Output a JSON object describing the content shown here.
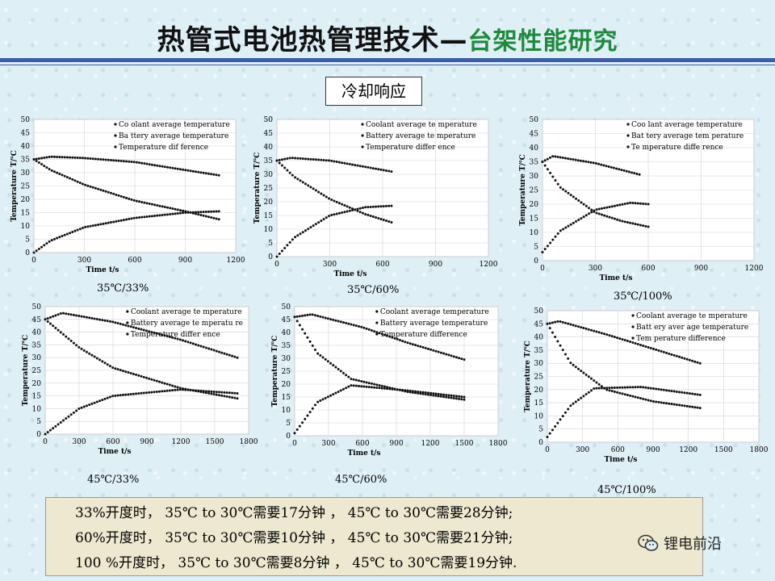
{
  "header": {
    "title_main": "热管式电池热管理技术—",
    "title_sub": "台架性能研究"
  },
  "section_label": "冷却响应",
  "chart_data": [
    {
      "type": "scatter",
      "caption": "35℃/33%",
      "xlabel": "Time t/s",
      "ylabel": "Temperature T/℃",
      "xlim": [
        0,
        1200
      ],
      "ylim": [
        0,
        50
      ],
      "xticks": [
        0,
        300,
        600,
        900,
        1200
      ],
      "yticks": [
        0,
        5,
        10,
        15,
        20,
        25,
        30,
        35,
        40,
        45,
        50
      ],
      "legend": [
        "Co olant average temperature",
        "Ba ttery average temperature",
        "Temperature dif ference"
      ],
      "series": [
        {
          "name": "Coolant",
          "points": [
            [
              0,
              35
            ],
            [
              100,
              36
            ],
            [
              300,
              35.5
            ],
            [
              600,
              34
            ],
            [
              900,
              31
            ],
            [
              1100,
              29
            ]
          ]
        },
        {
          "name": "Battery",
          "points": [
            [
              0,
              35
            ],
            [
              100,
              31
            ],
            [
              300,
              25.5
            ],
            [
              600,
              19.5
            ],
            [
              900,
              15.5
            ],
            [
              1100,
              12.5
            ]
          ]
        },
        {
          "name": "Diff",
          "points": [
            [
              0,
              0
            ],
            [
              100,
              4.5
            ],
            [
              300,
              9.5
            ],
            [
              600,
              13
            ],
            [
              900,
              15
            ],
            [
              1100,
              15.5
            ]
          ]
        }
      ]
    },
    {
      "type": "scatter",
      "caption": "35℃/60%",
      "xlabel": "Time t/s",
      "ylabel": "Temperature T/℃",
      "xlim": [
        0,
        1200
      ],
      "ylim": [
        0,
        50
      ],
      "xticks": [
        0,
        300,
        600,
        900,
        1200
      ],
      "yticks": [
        0,
        5,
        10,
        15,
        20,
        25,
        30,
        35,
        40,
        45,
        50
      ],
      "legend": [
        "Coolant average te mperature",
        "Battery average te mperature",
        "Temperature differ ence"
      ],
      "series": [
        {
          "name": "Coolant",
          "points": [
            [
              0,
              35
            ],
            [
              80,
              36
            ],
            [
              300,
              35
            ],
            [
              650,
              31
            ]
          ]
        },
        {
          "name": "Battery",
          "points": [
            [
              0,
              35
            ],
            [
              100,
              29
            ],
            [
              300,
              21
            ],
            [
              500,
              15.5
            ],
            [
              650,
              12.5
            ]
          ]
        },
        {
          "name": "Diff",
          "points": [
            [
              0,
              0
            ],
            [
              100,
              7
            ],
            [
              300,
              15
            ],
            [
              500,
              18
            ],
            [
              650,
              18.5
            ]
          ]
        }
      ]
    },
    {
      "type": "scatter",
      "caption": "35℃/100%",
      "xlabel": "Time t/s",
      "ylabel": "Temperature T/℃",
      "xlim": [
        0,
        1200
      ],
      "ylim": [
        0,
        50
      ],
      "xticks": [
        0,
        300,
        600,
        900,
        1200
      ],
      "yticks": [
        0,
        5,
        10,
        15,
        20,
        25,
        30,
        35,
        40,
        45,
        50
      ],
      "legend": [
        "Coo lant average temperature",
        "Bat tery average tem perature",
        "Te mperature diffe rence"
      ],
      "series": [
        {
          "name": "Coolant",
          "points": [
            [
              0,
              35
            ],
            [
              60,
              37
            ],
            [
              300,
              34.5
            ],
            [
              550,
              30.5
            ]
          ]
        },
        {
          "name": "Battery",
          "points": [
            [
              0,
              35
            ],
            [
              100,
              26
            ],
            [
              300,
              17
            ],
            [
              450,
              14
            ],
            [
              600,
              12
            ]
          ]
        },
        {
          "name": "Diff",
          "points": [
            [
              0,
              3
            ],
            [
              100,
              10.5
            ],
            [
              300,
              18
            ],
            [
              500,
              20.5
            ],
            [
              600,
              20
            ]
          ]
        }
      ]
    },
    {
      "type": "scatter",
      "caption": "45℃/33%",
      "xlabel": "Time t/s",
      "ylabel": "Temperature T/℃",
      "xlim": [
        0,
        1800
      ],
      "ylim": [
        0,
        50
      ],
      "xticks": [
        0,
        300,
        600,
        900,
        1200,
        1500,
        1800
      ],
      "yticks": [
        0,
        5,
        10,
        15,
        20,
        25,
        30,
        35,
        40,
        45,
        50
      ],
      "legend": [
        "Coolant average te mperature",
        "Battery average te mperatu re",
        "Temperature differ ence"
      ],
      "series": [
        {
          "name": "Coolant",
          "points": [
            [
              0,
              45
            ],
            [
              150,
              47.5
            ],
            [
              600,
              44
            ],
            [
              1200,
              37
            ],
            [
              1700,
              30
            ]
          ]
        },
        {
          "name": "Battery",
          "points": [
            [
              0,
              45
            ],
            [
              300,
              34
            ],
            [
              600,
              26
            ],
            [
              1200,
              18
            ],
            [
              1700,
              14
            ]
          ]
        },
        {
          "name": "Diff",
          "points": [
            [
              0,
              0
            ],
            [
              300,
              10
            ],
            [
              600,
              15
            ],
            [
              1200,
              17.5
            ],
            [
              1700,
              16
            ]
          ]
        }
      ]
    },
    {
      "type": "scatter",
      "caption": "45℃/60%",
      "xlabel": "Time t/s",
      "ylabel": "Temperature T/℃",
      "xlim": [
        0,
        1800
      ],
      "ylim": [
        0,
        50
      ],
      "xticks": [
        0,
        300,
        600,
        900,
        1200,
        1500,
        1800
      ],
      "yticks": [
        0,
        5,
        10,
        15,
        20,
        25,
        30,
        35,
        40,
        45,
        50
      ],
      "legend": [
        "Coolant average temperature",
        "Battery average temperature",
        "Temperature difference"
      ],
      "series": [
        {
          "name": "Coolant",
          "points": [
            [
              0,
              46
            ],
            [
              150,
              47
            ],
            [
              600,
              42
            ],
            [
              1000,
              36
            ],
            [
              1500,
              29.5
            ]
          ]
        },
        {
          "name": "Battery",
          "points": [
            [
              0,
              46
            ],
            [
              200,
              32
            ],
            [
              500,
              22
            ],
            [
              1000,
              17
            ],
            [
              1500,
              14
            ]
          ]
        },
        {
          "name": "Diff",
          "points": [
            [
              0,
              1
            ],
            [
              200,
              13
            ],
            [
              500,
              19.5
            ],
            [
              1000,
              17.5
            ],
            [
              1500,
              15
            ]
          ]
        }
      ]
    },
    {
      "type": "scatter",
      "caption": "45℃/100%",
      "xlabel": "Time t/s",
      "ylabel": "Temperature T/℃",
      "xlim": [
        0,
        1800
      ],
      "ylim": [
        0,
        50
      ],
      "xticks": [
        0,
        300,
        600,
        900,
        1200,
        1500,
        1800
      ],
      "yticks": [
        0,
        5,
        10,
        15,
        20,
        25,
        30,
        35,
        40,
        45,
        50
      ],
      "legend": [
        "Coolant average te mperature",
        "Batt ery aver age temperature",
        "Tem perature difference"
      ],
      "series": [
        {
          "name": "Coolant",
          "points": [
            [
              0,
              45
            ],
            [
              100,
              46
            ],
            [
              500,
              41
            ],
            [
              900,
              35.5
            ],
            [
              1300,
              30
            ]
          ]
        },
        {
          "name": "Battery",
          "points": [
            [
              0,
              45
            ],
            [
              200,
              30
            ],
            [
              500,
              20
            ],
            [
              900,
              15.5
            ],
            [
              1300,
              13
            ]
          ]
        },
        {
          "name": "Diff",
          "points": [
            [
              0,
              2
            ],
            [
              200,
              14
            ],
            [
              400,
              20.5
            ],
            [
              800,
              21
            ],
            [
              1300,
              18
            ]
          ]
        }
      ]
    }
  ],
  "summary": {
    "lines": [
      "33%开度时， 35℃ to 30℃需要17分钟 ， 45℃ to 30℃需要28分钟;",
      "60%开度时， 35℃ to 30℃需要10分钟 ， 45℃ to 30℃需要21分钟;",
      "100 %开度时， 35℃ to 30℃需要8分钟 ， 45℃ to 30℃需要19分钟."
    ]
  },
  "watermark": {
    "text": "锂电前沿",
    "icon": "wechat-icon"
  }
}
